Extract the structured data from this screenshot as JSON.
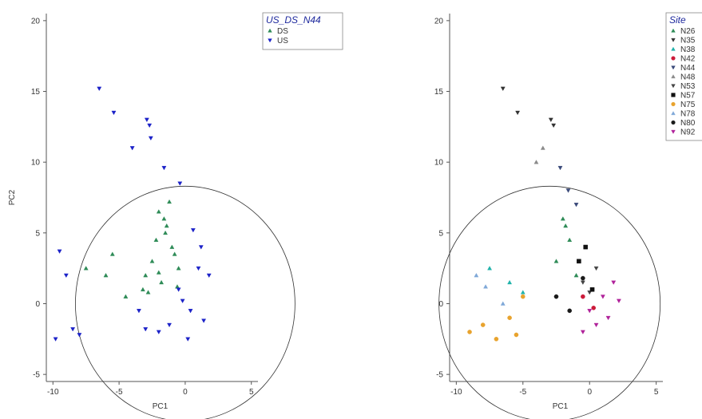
{
  "chart_data": [
    {
      "type": "scatter",
      "title": "",
      "xlabel": "PC1",
      "ylabel": "PC2",
      "xlim": [
        -10.5,
        5.5
      ],
      "ylim": [
        -5.5,
        20.5
      ],
      "xticks": [
        -10,
        -5,
        0,
        5
      ],
      "yticks": [
        -5,
        0,
        5,
        10,
        15,
        20
      ],
      "xtick_labels": [
        "-10",
        "-5",
        "0",
        "5"
      ],
      "ytick_labels": [
        "-5",
        "0",
        "5",
        "10",
        "15",
        "20"
      ],
      "grid": false,
      "legend": {
        "title": "US_DS_N44",
        "placement": "top-right",
        "entries": [
          "DS",
          "US"
        ]
      },
      "correlation_circle": {
        "center": [
          0,
          0
        ],
        "radius": 8.3
      },
      "series": [
        {
          "name": "DS",
          "color": "#2e8b57",
          "marker": "triangle-up",
          "x": [
            -2.0,
            -1.5,
            -1.0,
            -2.5,
            -0.5,
            -3.0,
            -1.8,
            -1.2,
            -2.2,
            -0.8,
            -1.6,
            -7.5,
            -6.0,
            -5.5,
            -4.5,
            -2.8,
            -1.4,
            -0.6,
            -3.2,
            -2.0
          ],
          "y": [
            6.5,
            5.0,
            4.0,
            3.0,
            2.5,
            2.0,
            1.5,
            7.2,
            4.5,
            3.5,
            6.0,
            2.5,
            2.0,
            3.5,
            0.5,
            0.8,
            5.5,
            1.2,
            1.0,
            2.2
          ]
        },
        {
          "name": "US",
          "color": "#1c22c8",
          "marker": "triangle-down",
          "x": [
            -6.5,
            -5.4,
            -2.9,
            -2.7,
            -2.6,
            -4.0,
            -9.5,
            -9.0,
            -9.8,
            -8.5,
            -8.0,
            -1.6,
            -0.4,
            0.6,
            1.2,
            1.8,
            -0.5,
            0.4,
            -1.2,
            -2.0,
            0.2,
            1.4,
            -3.0,
            -3.5,
            -0.2,
            1.0
          ],
          "y": [
            15.2,
            13.5,
            13.0,
            12.6,
            11.7,
            11.0,
            3.7,
            2.0,
            -2.5,
            -1.8,
            -2.2,
            9.6,
            8.5,
            5.2,
            4.0,
            2.0,
            1.0,
            -0.5,
            -1.5,
            -2.0,
            -2.5,
            -1.2,
            -1.8,
            -0.5,
            0.2,
            2.5
          ]
        }
      ]
    },
    {
      "type": "scatter",
      "title": "",
      "xlabel": "PC1",
      "ylabel": "",
      "xlim": [
        -10.5,
        5.5
      ],
      "ylim": [
        -5.5,
        20.5
      ],
      "xticks": [
        -10,
        -5,
        0,
        5
      ],
      "yticks": [
        -5,
        0,
        5,
        10,
        15,
        20
      ],
      "xtick_labels": [
        "-10",
        "-5",
        "0",
        "5"
      ],
      "ytick_labels": [
        "-5",
        "0",
        "5",
        "10",
        "15",
        "20"
      ],
      "grid": false,
      "legend": {
        "title": "Site",
        "placement": "top-right",
        "entries": [
          "N26",
          "N35",
          "N38",
          "N42",
          "N44",
          "N48",
          "N53",
          "N57",
          "N75",
          "N78",
          "N80",
          "N92"
        ]
      },
      "correlation_circle": {
        "center": [
          -3,
          0
        ],
        "radius": 8.3
      },
      "series": [
        {
          "name": "N26",
          "color": "#2e8b57",
          "marker": "triangle-up",
          "x": [
            -2.0,
            -1.5,
            -2.5,
            -1.0,
            -1.8
          ],
          "y": [
            6.0,
            4.5,
            3.0,
            2.0,
            5.5
          ]
        },
        {
          "name": "N35",
          "color": "#333333",
          "marker": "triangle-down",
          "x": [
            -6.5,
            -5.4,
            -2.9,
            -2.7
          ],
          "y": [
            15.2,
            13.5,
            13.0,
            12.6
          ]
        },
        {
          "name": "N38",
          "color": "#20b2aa",
          "marker": "triangle-up",
          "x": [
            -7.5,
            -6.0,
            -5.0
          ],
          "y": [
            2.5,
            1.5,
            0.8
          ]
        },
        {
          "name": "N42",
          "color": "#cc1b3a",
          "marker": "circle",
          "x": [
            -0.5,
            0.3
          ],
          "y": [
            0.5,
            -0.3
          ]
        },
        {
          "name": "N44",
          "color": "#3a4a7a",
          "marker": "triangle-down",
          "x": [
            -2.2,
            -1.6,
            -1.0
          ],
          "y": [
            9.6,
            8.0,
            7.0
          ]
        },
        {
          "name": "N48",
          "color": "#8a8a8a",
          "marker": "triangle-up",
          "x": [
            -3.5,
            -4.0
          ],
          "y": [
            11.0,
            10.0
          ]
        },
        {
          "name": "N53",
          "color": "#444444",
          "marker": "triangle-down",
          "x": [
            -0.5,
            0.0,
            0.5
          ],
          "y": [
            1.5,
            0.8,
            2.5
          ]
        },
        {
          "name": "N57",
          "color": "#111111",
          "marker": "square",
          "x": [
            -0.3,
            -0.8,
            0.2
          ],
          "y": [
            4.0,
            3.0,
            1.0
          ]
        },
        {
          "name": "N75",
          "color": "#e8a32e",
          "marker": "circle",
          "x": [
            -9.0,
            -8.0,
            -7.0,
            -6.0,
            -5.5,
            -5.0
          ],
          "y": [
            -2.0,
            -1.5,
            -2.5,
            -1.0,
            -2.2,
            0.5
          ]
        },
        {
          "name": "N78",
          "color": "#7fa8d8",
          "marker": "triangle-up",
          "x": [
            -8.5,
            -7.8,
            -6.5
          ],
          "y": [
            2.0,
            1.2,
            0.0
          ]
        },
        {
          "name": "N80",
          "color": "#1a1a1a",
          "marker": "circle",
          "x": [
            -1.5,
            -2.5,
            -0.5
          ],
          "y": [
            -0.5,
            0.5,
            1.8
          ]
        },
        {
          "name": "N92",
          "color": "#b0229a",
          "marker": "triangle-down",
          "x": [
            0.0,
            1.0,
            1.8,
            0.5,
            1.4,
            -0.5,
            2.2
          ],
          "y": [
            -0.5,
            0.5,
            1.5,
            -1.5,
            -1.0,
            -2.0,
            0.2
          ]
        }
      ]
    }
  ]
}
